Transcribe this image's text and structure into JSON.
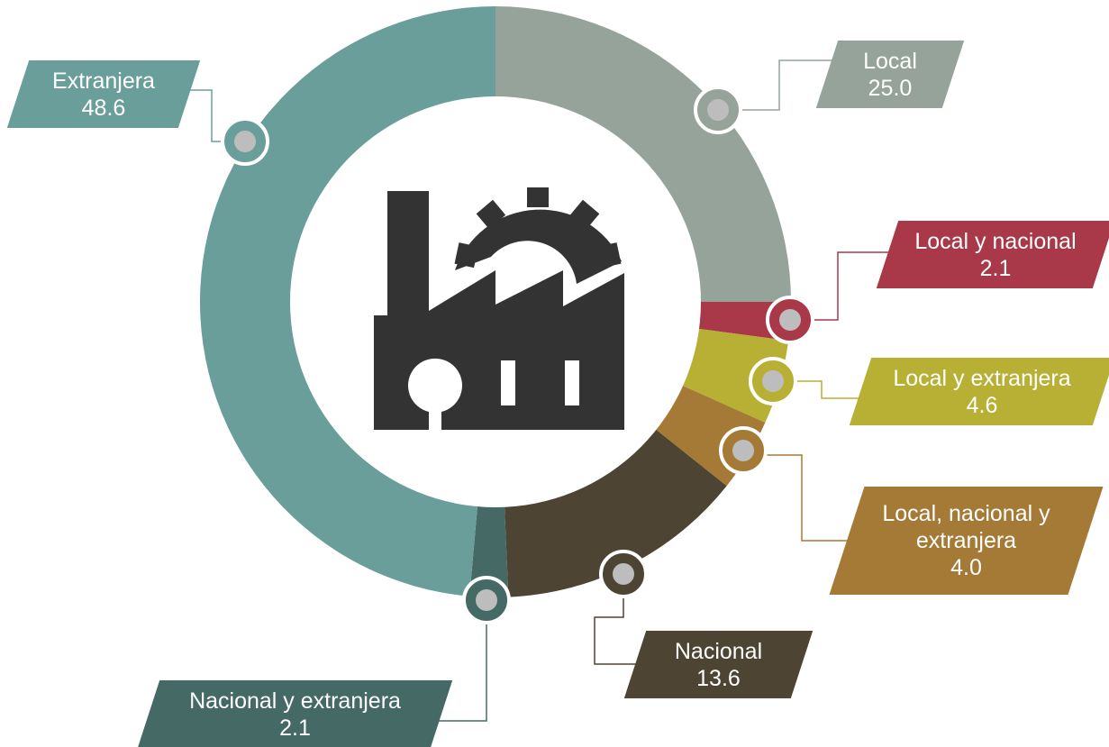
{
  "chart_data": {
    "type": "donut",
    "categories": [
      "Local",
      "Local y nacional",
      "Local y extranjera",
      "Local, nacional y extranjera",
      "Nacional",
      "Nacional y extranjera",
      "Extranjera"
    ],
    "values": [
      25.0,
      2.1,
      4.6,
      4.0,
      13.6,
      2.1,
      48.6
    ],
    "value_labels": [
      "25.0",
      "2.1",
      "4.6",
      "4.0",
      "13.6",
      "2.1",
      "48.6"
    ],
    "colors": [
      "#95a39b",
      "#a93848",
      "#b8b035",
      "#a57a37",
      "#4d4433",
      "#456a66",
      "#6a9e9a"
    ]
  }
}
